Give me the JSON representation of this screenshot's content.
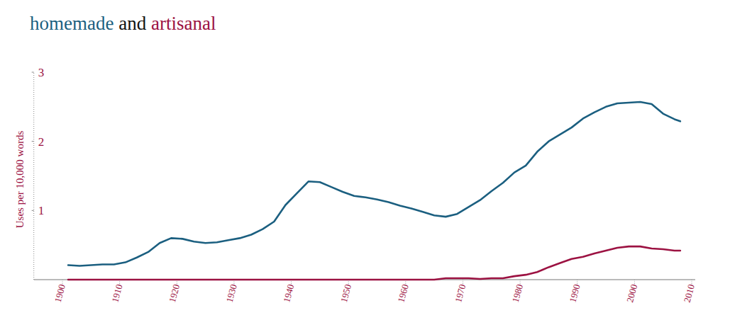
{
  "chart_data": {
    "type": "line",
    "title": "homemade and artisanal",
    "y_label": "Uses per 10,000 words",
    "x": [
      1901,
      1903,
      1905,
      1907,
      1909,
      1911,
      1913,
      1915,
      1917,
      1919,
      1921,
      1923,
      1925,
      1927,
      1929,
      1931,
      1933,
      1935,
      1937,
      1939,
      1941,
      1943,
      1945,
      1947,
      1949,
      1951,
      1953,
      1955,
      1957,
      1959,
      1961,
      1963,
      1965,
      1967,
      1969,
      1971,
      1973,
      1975,
      1977,
      1979,
      1981,
      1983,
      1985,
      1987,
      1989,
      1991,
      1993,
      1995,
      1997,
      1999,
      2001,
      2003,
      2005,
      2007,
      2008
    ],
    "series": [
      {
        "name": "homemade",
        "color": "#1b5f80",
        "values": [
          0.21,
          0.2,
          0.21,
          0.22,
          0.22,
          0.25,
          0.32,
          0.4,
          0.53,
          0.6,
          0.59,
          0.55,
          0.53,
          0.54,
          0.57,
          0.6,
          0.65,
          0.73,
          0.84,
          1.08,
          1.25,
          1.42,
          1.41,
          1.34,
          1.27,
          1.21,
          1.19,
          1.16,
          1.12,
          1.07,
          1.03,
          0.98,
          0.93,
          0.91,
          0.95,
          1.05,
          1.15,
          1.28,
          1.4,
          1.55,
          1.65,
          1.85,
          2.0,
          2.1,
          2.2,
          2.33,
          2.42,
          2.5,
          2.55,
          2.56,
          2.57,
          2.54,
          2.4,
          2.32,
          2.29
        ]
      },
      {
        "name": "artisanal",
        "color": "#9c1242",
        "values": [
          0,
          0,
          0,
          0,
          0,
          0,
          0,
          0,
          0,
          0,
          0,
          0,
          0,
          0,
          0,
          0,
          0,
          0,
          0,
          0,
          0,
          0,
          0,
          0,
          0,
          0,
          0,
          0,
          0,
          0,
          0,
          0,
          0,
          0.02,
          0.02,
          0.02,
          0.01,
          0.02,
          0.02,
          0.05,
          0.07,
          0.11,
          0.18,
          0.24,
          0.3,
          0.33,
          0.38,
          0.42,
          0.46,
          0.48,
          0.48,
          0.45,
          0.44,
          0.42,
          0.42
        ]
      }
    ],
    "xlim": [
      1895,
      2010
    ],
    "xticks": [
      1900,
      1910,
      1920,
      1930,
      1940,
      1950,
      1960,
      1970,
      1980,
      1990,
      2000,
      2010
    ],
    "ylim": [
      0,
      3
    ],
    "yticks": [
      1,
      2,
      3
    ],
    "grid": false
  }
}
